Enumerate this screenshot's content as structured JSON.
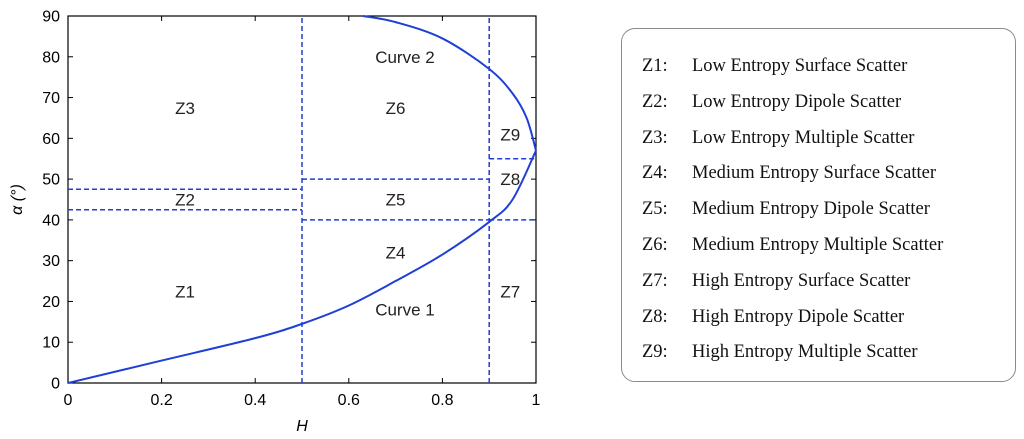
{
  "chart_data": {
    "type": "line",
    "xlabel": "H",
    "ylabel": "α (°)",
    "xlim": [
      0,
      1
    ],
    "ylim": [
      0,
      90
    ],
    "xticks": [
      "0",
      "0.2",
      "0.4",
      "0.6",
      "0.8",
      "1"
    ],
    "yticks": [
      "0",
      "10",
      "20",
      "30",
      "40",
      "50",
      "60",
      "70",
      "80",
      "90"
    ],
    "grid": false,
    "curve_color": "#1f3fd6",
    "boundary_color": "#1f3fd6",
    "curves": [
      {
        "name": "Curve 1",
        "x": [
          0,
          0.2,
          0.4,
          0.5,
          0.6,
          0.7,
          0.8,
          0.9,
          0.95,
          1.0
        ],
        "y": [
          0,
          5.5,
          11,
          14.5,
          19,
          25,
          31.5,
          39.5,
          45,
          57
        ]
      },
      {
        "name": "Curve 2",
        "x": [
          0.63,
          0.7,
          0.8,
          0.9,
          0.95,
          0.98,
          1.0
        ],
        "y": [
          90,
          88.5,
          84.5,
          77,
          71,
          65,
          57
        ]
      }
    ],
    "boundaries": [
      {
        "type": "vertical",
        "x": 0.5,
        "y": [
          0,
          90
        ]
      },
      {
        "type": "vertical",
        "x": 0.9,
        "y": [
          0,
          90
        ]
      },
      {
        "type": "horizontal",
        "y": 47.5,
        "x": [
          0,
          0.5
        ]
      },
      {
        "type": "horizontal",
        "y": 42.5,
        "x": [
          0,
          0.5
        ]
      },
      {
        "type": "horizontal",
        "y": 50,
        "x": [
          0.5,
          0.9
        ]
      },
      {
        "type": "horizontal",
        "y": 40,
        "x": [
          0.5,
          0.9
        ]
      },
      {
        "type": "horizontal",
        "y": 55,
        "x": [
          0.9,
          1.0
        ]
      },
      {
        "type": "horizontal",
        "y": 40,
        "x": [
          0.9,
          1.0
        ]
      }
    ],
    "zones": [
      {
        "label": "Z1",
        "x": 0.25,
        "y": 22.5
      },
      {
        "label": "Z2",
        "x": 0.25,
        "y": 45
      },
      {
        "label": "Z3",
        "x": 0.25,
        "y": 67.5
      },
      {
        "label": "Z4",
        "x": 0.7,
        "y": 32
      },
      {
        "label": "Z5",
        "x": 0.7,
        "y": 45
      },
      {
        "label": "Z6",
        "x": 0.7,
        "y": 67.5
      },
      {
        "label": "Z7",
        "x": 0.945,
        "y": 22.5
      },
      {
        "label": "Z8",
        "x": 0.945,
        "y": 50
      },
      {
        "label": "Z9",
        "x": 0.945,
        "y": 61
      }
    ],
    "curve_labels": [
      {
        "label": "Curve 1",
        "x": 0.72,
        "y": 18
      },
      {
        "label": "Curve 2",
        "x": 0.72,
        "y": 80
      }
    ]
  },
  "legend": {
    "items": [
      {
        "code": "Z1:",
        "text": "Low Entropy Surface Scatter"
      },
      {
        "code": "Z2:",
        "text": "Low Entropy Dipole Scatter"
      },
      {
        "code": "Z3:",
        "text": "Low Entropy Multiple Scatter"
      },
      {
        "code": "Z4:",
        "text": "Medium Entropy Surface Scatter"
      },
      {
        "code": "Z5:",
        "text": "Medium Entropy Dipole Scatter"
      },
      {
        "code": "Z6:",
        "text": "Medium Entropy Multiple Scatter"
      },
      {
        "code": "Z7:",
        "text": "High Entropy Surface Scatter"
      },
      {
        "code": "Z8:",
        "text": "High Entropy Dipole Scatter"
      },
      {
        "code": "Z9:",
        "text": "High Entropy Multiple Scatter"
      }
    ]
  }
}
